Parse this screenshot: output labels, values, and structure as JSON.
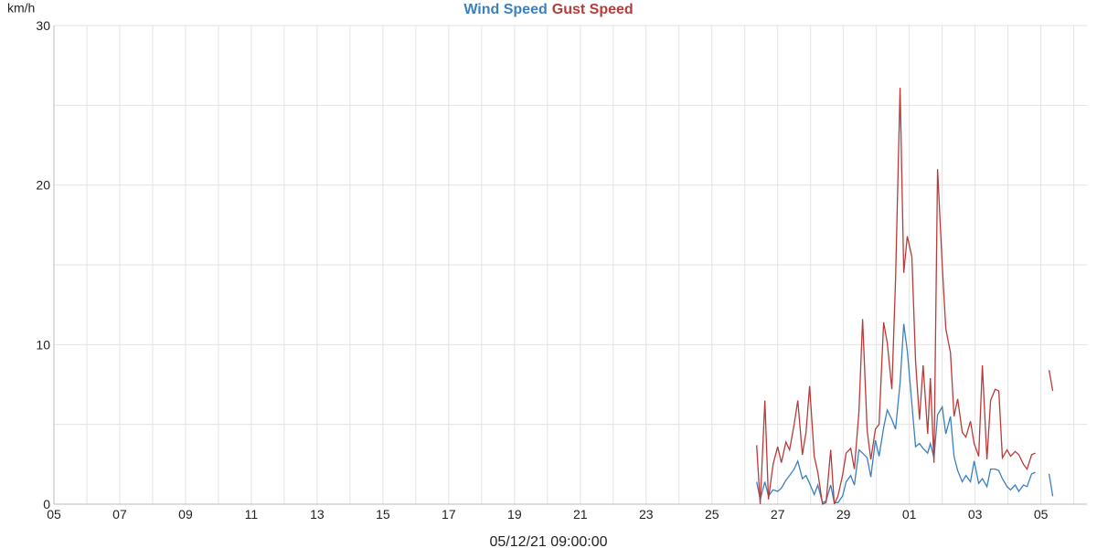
{
  "chart_data": {
    "type": "line",
    "ylabel": "km/h",
    "xlabel": "05/12/21 09:00:00",
    "xlim": [
      0,
      31.4
    ],
    "ylim": [
      0,
      30
    ],
    "xticks": [
      {
        "value": 0,
        "label": "05"
      },
      {
        "value": 2,
        "label": "07"
      },
      {
        "value": 4,
        "label": "09"
      },
      {
        "value": 6,
        "label": "11"
      },
      {
        "value": 8,
        "label": "13"
      },
      {
        "value": 10,
        "label": "15"
      },
      {
        "value": 12,
        "label": "17"
      },
      {
        "value": 14,
        "label": "19"
      },
      {
        "value": 16,
        "label": "21"
      },
      {
        "value": 18,
        "label": "23"
      },
      {
        "value": 20,
        "label": "25"
      },
      {
        "value": 22,
        "label": "27"
      },
      {
        "value": 24,
        "label": "29"
      },
      {
        "value": 26,
        "label": "01"
      },
      {
        "value": 28,
        "label": "03"
      },
      {
        "value": 30,
        "label": "05"
      }
    ],
    "xminorticks": [
      1,
      3,
      5,
      7,
      9,
      11,
      13,
      15,
      17,
      19,
      21,
      23,
      25,
      27,
      29,
      31
    ],
    "yticks": [
      0,
      10,
      20,
      30
    ],
    "yminorticks": [
      5,
      15,
      25
    ],
    "grid": true,
    "x": [
      21.36,
      21.47,
      21.61,
      21.72,
      21.86,
      22.0,
      22.11,
      22.25,
      22.36,
      22.5,
      22.61,
      22.75,
      22.86,
      22.97,
      23.11,
      23.22,
      23.36,
      23.47,
      23.61,
      23.72,
      23.83,
      23.97,
      24.08,
      24.22,
      24.33,
      24.47,
      24.58,
      24.72,
      24.83,
      24.97,
      25.08,
      25.22,
      25.33,
      25.47,
      25.58,
      25.72,
      25.83,
      25.94,
      26.08,
      26.19,
      26.31,
      26.42,
      26.56,
      26.64,
      26.75,
      26.86,
      27.0,
      27.11,
      27.25,
      27.36,
      27.47,
      27.61,
      27.72,
      27.86,
      27.97,
      28.11,
      28.22,
      28.36,
      28.47,
      28.61,
      28.72,
      28.83,
      28.97,
      29.08,
      29.22,
      29.33,
      29.47,
      29.58,
      29.72,
      29.83,
      30.05,
      30.25,
      30.36
    ],
    "series": [
      {
        "name": "Wind Speed",
        "color": "#3b80bf",
        "values": [
          1.4,
          0.3,
          1.4,
          0.5,
          0.9,
          0.8,
          1.0,
          1.5,
          1.8,
          2.2,
          2.7,
          1.6,
          1.8,
          1.3,
          0.6,
          1.2,
          0.1,
          0.2,
          1.2,
          0.1,
          0.1,
          0.5,
          1.4,
          1.8,
          1.2,
          3.4,
          3.2,
          2.9,
          1.7,
          4.0,
          3.0,
          4.8,
          5.9,
          5.3,
          4.7,
          7.6,
          11.3,
          9.6,
          6.3,
          3.6,
          3.8,
          3.5,
          3.2,
          3.8,
          2.9,
          5.6,
          6.1,
          4.4,
          5.5,
          3.0,
          2.1,
          1.4,
          1.8,
          1.4,
          2.7,
          1.3,
          1.6,
          1.1,
          2.2,
          2.2,
          2.1,
          1.6,
          1.1,
          0.9,
          1.2,
          0.8,
          1.2,
          1.1,
          1.9,
          2.0,
          null,
          1.9,
          0.5
        ]
      },
      {
        "name": "Gust Speed",
        "color": "#b83b3b",
        "values": [
          3.7,
          0.0,
          6.5,
          0.3,
          2.5,
          3.6,
          2.6,
          3.9,
          3.4,
          5.0,
          6.5,
          3.1,
          4.5,
          7.4,
          3.0,
          2.0,
          0.0,
          0.1,
          3.4,
          0.0,
          0.5,
          1.8,
          3.2,
          3.5,
          2.2,
          5.8,
          11.6,
          4.6,
          2.8,
          4.7,
          5.0,
          11.4,
          10.1,
          7.2,
          14.0,
          26.1,
          14.5,
          16.8,
          15.5,
          9.0,
          5.3,
          8.7,
          4.4,
          7.9,
          2.6,
          21.0,
          15.0,
          11.0,
          9.5,
          5.5,
          6.6,
          4.5,
          4.2,
          5.2,
          3.8,
          3.0,
          8.7,
          2.8,
          6.5,
          7.2,
          7.1,
          2.9,
          3.4,
          3.0,
          3.3,
          3.1,
          2.5,
          2.2,
          3.1,
          3.2,
          null,
          8.4,
          7.1
        ]
      }
    ]
  }
}
